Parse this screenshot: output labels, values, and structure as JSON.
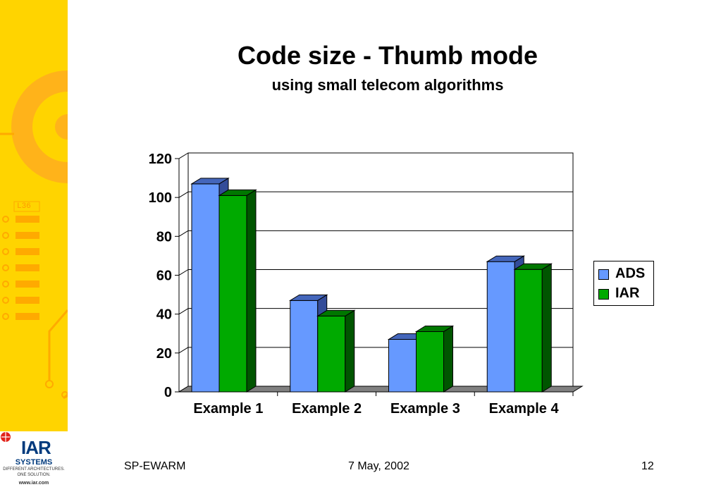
{
  "slide": {
    "title": "Code size - Thumb mode",
    "subtitle": "using small telecom algorithms"
  },
  "footer": {
    "left": "SP-EWARM",
    "center": "7 May, 2002",
    "right": "12"
  },
  "logo": {
    "brand": "IAR",
    "line2": "SYSTEMS",
    "tagline1": "DIFFERENT ARCHITECTURES.",
    "tagline2": "ONE SOLUTION.",
    "url": "www.iar.com"
  },
  "sidebar_label": "L36",
  "chart_data": {
    "type": "bar",
    "categories": [
      "Example 1",
      "Example 2",
      "Example 3",
      "Example 4"
    ],
    "series": [
      {
        "name": "ADS",
        "values": [
          107,
          47,
          27,
          67
        ],
        "color": "#6699ff"
      },
      {
        "name": "IAR",
        "values": [
          101,
          39,
          31,
          63
        ],
        "color": "#00aa00"
      }
    ],
    "yticks": [
      "0",
      "20",
      "40",
      "60",
      "80",
      "100",
      "120"
    ],
    "ylim": [
      0,
      120
    ],
    "grid": true,
    "legend": "right",
    "style": "3d-clustered"
  }
}
